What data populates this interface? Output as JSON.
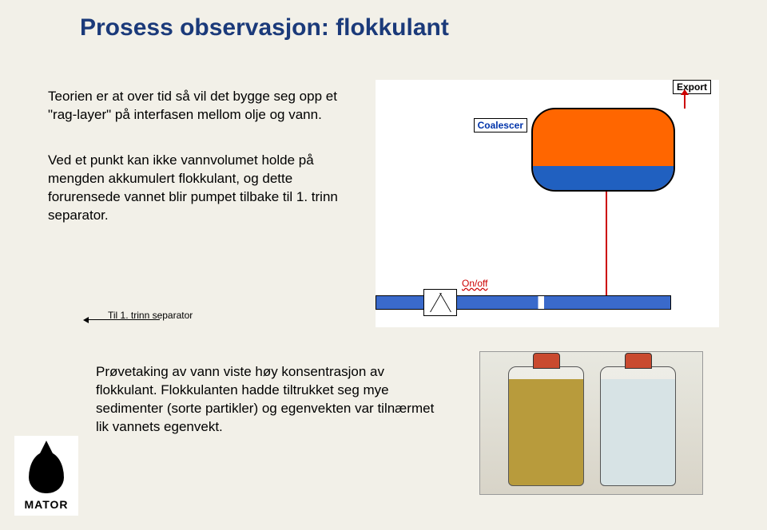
{
  "title": "Prosess observasjon: flokkulant",
  "para1": "Teorien er at over tid så vil det bygge seg opp et \"rag-layer\" på interfasen mellom olje og vann.",
  "para2": "Ved et punkt kan ikke vannvolumet holde på mengden akkumulert flokkulant, og dette forurensede vannet blir pumpet tilbake til 1. trinn separator.",
  "para3": "Prøvetaking av vann viste høy konsentrasjon av flokkulant. Flokkulanten hadde tiltrukket seg mye sedimenter (sorte partikler) og egenvekten var tilnærmet lik vannets egenvekt.",
  "diagram": {
    "coalescer_label": "Coalescer",
    "export_label": "Export",
    "onoff_label": "On/off",
    "til1_label": "Til 1. trinn separator",
    "colors": {
      "oil": "#ff6600",
      "water": "#2060c0",
      "pipe": "#3a6acb",
      "export_line": "#cc0000",
      "title": "#1b3a7a",
      "background": "#f2f0e8"
    }
  },
  "logo": {
    "brand": "MATOR"
  }
}
